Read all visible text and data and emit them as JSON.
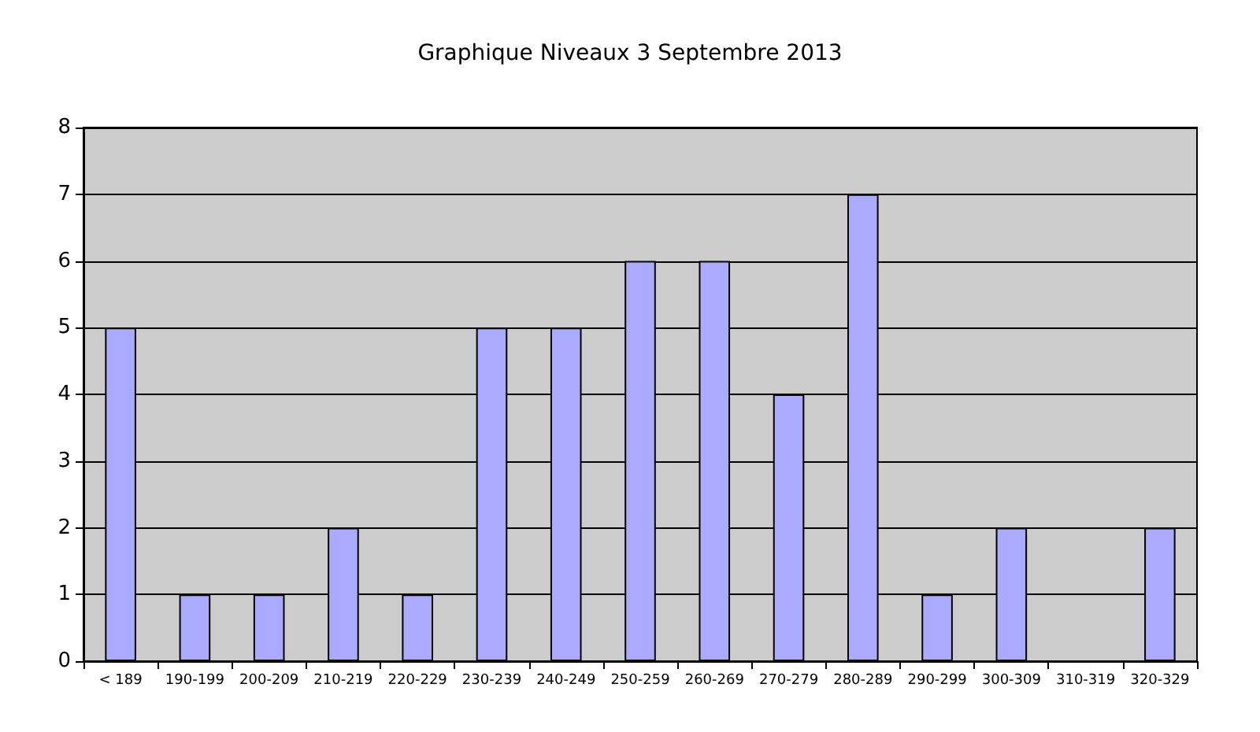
{
  "chart_data": {
    "type": "bar",
    "title": "Graphique Niveaux 3 Septembre 2013",
    "categories": [
      "< 189",
      "190-199",
      "200-209",
      "210-219",
      "220-229",
      "230-239",
      "240-249",
      "250-259",
      "260-269",
      "270-279",
      "280-289",
      "290-299",
      "300-309",
      "310-319",
      "320-329"
    ],
    "values": [
      5,
      1,
      1,
      2,
      1,
      5,
      5,
      6,
      6,
      4,
      7,
      1,
      2,
      0,
      2
    ],
    "color": "#aaaaff",
    "ylim": [
      0,
      8
    ],
    "yticks": [
      0,
      1,
      2,
      3,
      4,
      5,
      6,
      7,
      8
    ],
    "grid": "y"
  }
}
